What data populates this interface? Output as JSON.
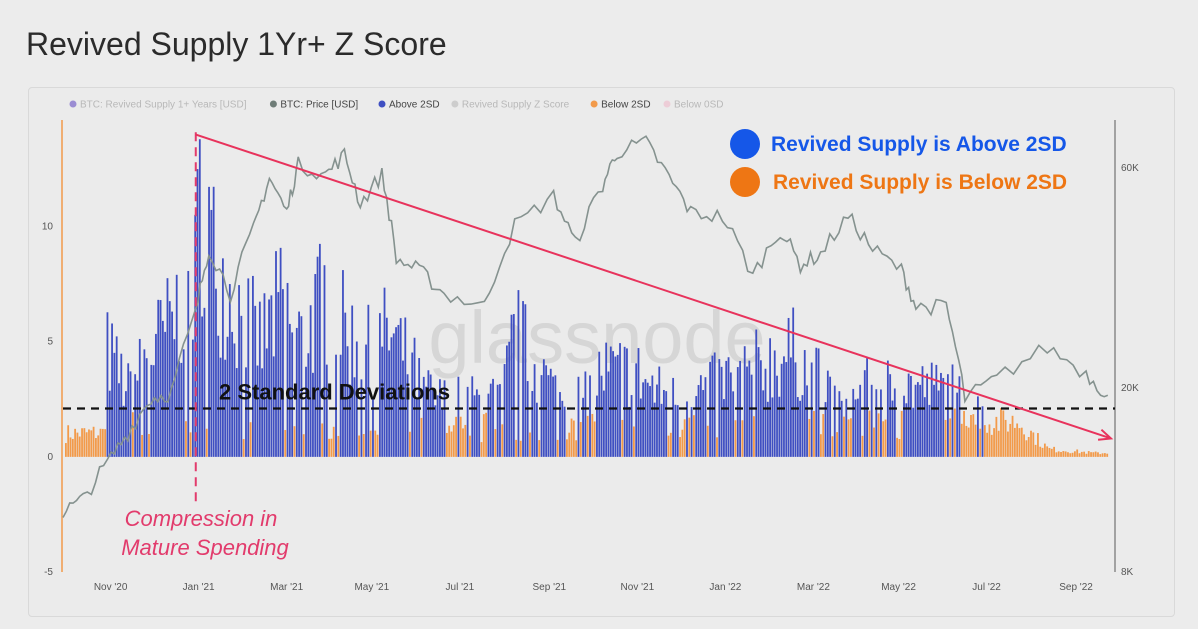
{
  "page": {
    "title": "Revived Supply 1Yr+ Z Score"
  },
  "colors": {
    "above": "#3f4fc2",
    "below": "#f29a4a",
    "price": "#85928f",
    "trend": "#e8335c",
    "threshold": "#111111",
    "annotation": "#e23b6c",
    "callout_above": "#1557e8",
    "callout_below": "#ee7614",
    "left_axis": "#f29a4a",
    "right_axis": "#8a8a8a"
  },
  "legend": [
    {
      "label": "BTC: Revived Supply 1+ Years [USD]",
      "color": "#5a3fc0",
      "active": false
    },
    {
      "label": "BTC: Price [USD]",
      "color": "#6f7d78",
      "active": true
    },
    {
      "label": "Above 2SD",
      "color": "#3f4fc2",
      "active": true
    },
    {
      "label": "Revived Supply Z Score",
      "color": "#b5b5b5",
      "active": false
    },
    {
      "label": "Below 2SD",
      "color": "#f29a4a",
      "active": true
    },
    {
      "label": "Below 0SD",
      "color": "#efb4c6",
      "active": false
    }
  ],
  "watermark": "glassnode",
  "annotations": {
    "threshold_label": "2 Standard Deviations",
    "compression_line1": "Compression in",
    "compression_line2": "Mature Spending",
    "callout_above": "Revived Supply is Above 2SD",
    "callout_below": "Revived Supply is Below 2SD"
  },
  "chart_data": {
    "type": "bar",
    "title": "Revived Supply 1Yr+ Z Score",
    "x_range": [
      "2020-10-01",
      "2022-09-30"
    ],
    "x_ticks": [
      "Nov '20",
      "Jan '21",
      "Mar '21",
      "May '21",
      "Jul '21",
      "Sep '21",
      "Nov '21",
      "Jan '22",
      "Mar '22",
      "May '22",
      "Jul '22",
      "Sep '22"
    ],
    "y_left": {
      "ticks": [
        "10",
        "5",
        "0",
        "-5"
      ],
      "range": [
        -5,
        14.5
      ]
    },
    "y_right": {
      "ticks": [
        "60K",
        "20K",
        "8K"
      ],
      "scale": "log",
      "range": [
        8000,
        75000
      ]
    },
    "threshold_2sd": 2.1,
    "series": [
      {
        "name": "Above 2SD",
        "color": "#3f4fc2",
        "note": "Z score bars above 2SD",
        "points": [
          [
            "2020-11-01",
            5.5
          ],
          [
            "2020-11-15",
            3.5
          ],
          [
            "2020-12-01",
            5.5
          ],
          [
            "2020-12-15",
            7.0
          ],
          [
            "2021-01-01",
            9.5
          ],
          [
            "2021-01-04",
            13.8
          ],
          [
            "2021-01-15",
            10.0
          ],
          [
            "2021-02-01",
            7.5
          ],
          [
            "2021-02-15",
            6.0
          ],
          [
            "2021-03-01",
            8.0
          ],
          [
            "2021-03-15",
            6.0
          ],
          [
            "2021-04-01",
            8.5
          ],
          [
            "2021-04-15",
            6.5
          ],
          [
            "2021-05-01",
            5.5
          ],
          [
            "2021-05-15",
            6.5
          ],
          [
            "2021-06-01",
            4.5
          ],
          [
            "2021-06-15",
            3.0
          ],
          [
            "2021-08-01",
            3.0
          ],
          [
            "2021-08-10",
            6.5
          ],
          [
            "2021-09-15",
            2.5
          ],
          [
            "2021-10-10",
            4.5
          ],
          [
            "2021-11-01",
            4.5
          ],
          [
            "2021-11-15",
            3.5
          ],
          [
            "2021-12-01",
            3.0
          ],
          [
            "2022-02-20",
            5.5
          ],
          [
            "2022-03-25",
            2.6
          ],
          [
            "2022-04-15",
            3.8
          ],
          [
            "2022-06-10",
            3.5
          ],
          [
            "2022-06-20",
            2.5
          ]
        ]
      },
      {
        "name": "Below 2SD",
        "color": "#f29a4a",
        "note": "Z score bars below 2SD",
        "points": [
          [
            "2020-10-05",
            1.2
          ],
          [
            "2021-06-20",
            1.5
          ],
          [
            "2021-07-15",
            1.2
          ],
          [
            "2021-09-01",
            1.3
          ],
          [
            "2021-10-01",
            1.5
          ],
          [
            "2021-12-15",
            1.4
          ],
          [
            "2022-01-15",
            1.6
          ],
          [
            "2022-03-01",
            1.6
          ],
          [
            "2022-05-01",
            1.4
          ],
          [
            "2022-06-01",
            1.8
          ],
          [
            "2022-07-25",
            1.8
          ],
          [
            "2022-08-15",
            0.4
          ],
          [
            "2022-09-15",
            0.2
          ]
        ]
      },
      {
        "name": "BTC: Price [USD]",
        "color": "#85928f",
        "axis": "right",
        "points": [
          [
            "2020-10-01",
            10800
          ],
          [
            "2020-10-15",
            11500
          ],
          [
            "2020-11-01",
            13800
          ],
          [
            "2020-11-15",
            16000
          ],
          [
            "2020-12-01",
            19000
          ],
          [
            "2020-12-15",
            19500
          ],
          [
            "2021-01-01",
            29000
          ],
          [
            "2021-01-10",
            40000
          ],
          [
            "2021-01-25",
            32000
          ],
          [
            "2021-02-10",
            44000
          ],
          [
            "2021-02-21",
            57000
          ],
          [
            "2021-03-05",
            48000
          ],
          [
            "2021-03-13",
            61000
          ],
          [
            "2021-04-01",
            58000
          ],
          [
            "2021-04-14",
            64000
          ],
          [
            "2021-04-25",
            50000
          ],
          [
            "2021-05-10",
            58000
          ],
          [
            "2021-05-20",
            38000
          ],
          [
            "2021-06-05",
            36000
          ],
          [
            "2021-06-22",
            32000
          ],
          [
            "2021-07-20",
            30000
          ],
          [
            "2021-08-10",
            45000
          ],
          [
            "2021-09-06",
            52000
          ],
          [
            "2021-09-21",
            41000
          ],
          [
            "2021-10-10",
            55000
          ],
          [
            "2021-10-20",
            65000
          ],
          [
            "2021-11-09",
            68000
          ],
          [
            "2021-11-25",
            57000
          ],
          [
            "2021-12-10",
            48000
          ],
          [
            "2022-01-01",
            47000
          ],
          [
            "2022-01-22",
            35000
          ],
          [
            "2022-02-10",
            44000
          ],
          [
            "2022-02-24",
            37000
          ],
          [
            "2022-03-10",
            39000
          ],
          [
            "2022-03-29",
            47000
          ],
          [
            "2022-04-15",
            40000
          ],
          [
            "2022-05-05",
            36000
          ],
          [
            "2022-05-15",
            30000
          ],
          [
            "2022-06-05",
            30000
          ],
          [
            "2022-06-18",
            19000
          ],
          [
            "2022-07-10",
            21000
          ],
          [
            "2022-08-14",
            24500
          ],
          [
            "2022-09-10",
            21500
          ],
          [
            "2022-09-25",
            19300
          ]
        ]
      },
      {
        "name": "Trend",
        "color": "#e8335c",
        "note": "descending trend arrow",
        "points": [
          [
            "2021-01-01",
            14.0
          ],
          [
            "2022-09-30",
            0.8
          ]
        ]
      }
    ],
    "grid": false,
    "legend_position": "top"
  }
}
